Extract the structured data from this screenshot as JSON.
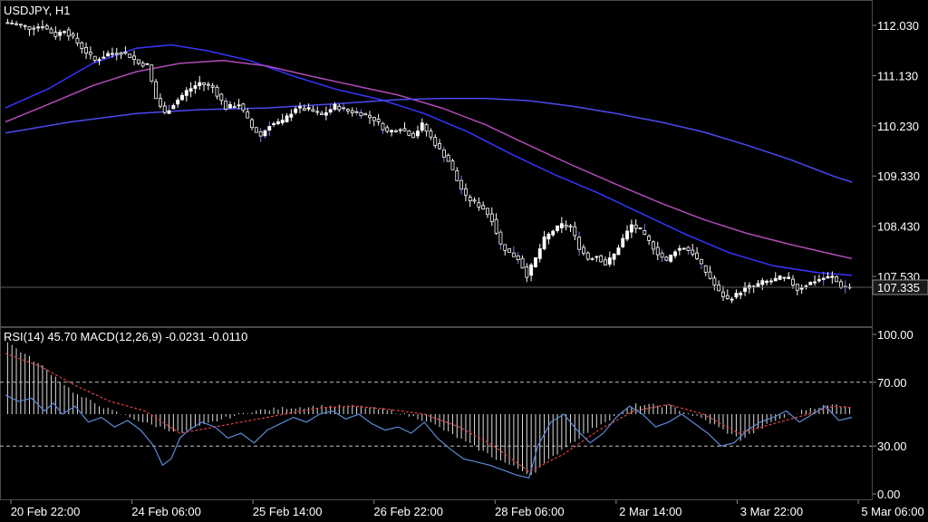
{
  "symbol_title": "USDJPY, H1",
  "indicator_title": "RSI(14) 45.70 MACD(12,26,9) -0.0231 -0.0110",
  "current_price_label": "107.335",
  "colors": {
    "background": "#000000",
    "grid": "#4a4a4a",
    "candle": "#ffffff",
    "candle_down_fill": "#000000",
    "candle_wick_purple": "#9b6cf0",
    "ma_fast": "#3535ff",
    "ma_mid": "#b04ab8",
    "ma_slow": "#4a4af0",
    "rsi_line": "#5b8ad8",
    "macd_signal": "#e04040",
    "macd_hist": "#dcdcdc",
    "price_tag_bg": "#1a1a1a"
  },
  "chart_data": [
    {
      "type": "candlestick",
      "title": "USDJPY, H1",
      "y_ticks": [
        "112.030",
        "111.130",
        "110.230",
        "109.330",
        "108.430",
        "107.530"
      ],
      "ylim": [
        106.95,
        112.25
      ],
      "x_ticks": [
        "20 Feb 22:00",
        "24 Feb 06:00",
        "25 Feb 14:00",
        "26 Feb 22:00",
        "28 Feb 06:00",
        "2 Mar 14:00",
        "3 Mar 22:00",
        "5 Mar 06:00"
      ],
      "current_price": 107.335,
      "close_path": [
        [
          0,
          112.08
        ],
        [
          3,
          112.05
        ],
        [
          6,
          111.98
        ],
        [
          9,
          112.02
        ],
        [
          12,
          111.85
        ],
        [
          14,
          111.95
        ],
        [
          16,
          111.8
        ],
        [
          19,
          111.55
        ],
        [
          21,
          111.4
        ],
        [
          24,
          111.52
        ],
        [
          27,
          111.55
        ],
        [
          29,
          111.48
        ],
        [
          31,
          111.35
        ],
        [
          33,
          111.32
        ],
        [
          35,
          110.72
        ],
        [
          37,
          110.45
        ],
        [
          39,
          110.62
        ],
        [
          42,
          110.85
        ],
        [
          45,
          111.0
        ],
        [
          48,
          110.92
        ],
        [
          51,
          110.55
        ],
        [
          54,
          110.62
        ],
        [
          57,
          110.2
        ],
        [
          59,
          110.05
        ],
        [
          61,
          110.25
        ],
        [
          64,
          110.3
        ],
        [
          67,
          110.55
        ],
        [
          70,
          110.52
        ],
        [
          73,
          110.42
        ],
        [
          76,
          110.58
        ],
        [
          79,
          110.5
        ],
        [
          82,
          110.45
        ],
        [
          85,
          110.35
        ],
        [
          88,
          110.12
        ],
        [
          91,
          110.18
        ],
        [
          94,
          110.05
        ],
        [
          96,
          110.25
        ],
        [
          98,
          110.02
        ],
        [
          100,
          109.8
        ],
        [
          102,
          109.6
        ],
        [
          104,
          109.25
        ],
        [
          106,
          108.95
        ],
        [
          108,
          108.85
        ],
        [
          110,
          108.75
        ],
        [
          112,
          108.55
        ],
        [
          114,
          108.1
        ],
        [
          116,
          107.95
        ],
        [
          118,
          107.85
        ],
        [
          120,
          107.55
        ],
        [
          122,
          107.85
        ],
        [
          124,
          108.2
        ],
        [
          126,
          108.35
        ],
        [
          128,
          108.45
        ],
        [
          130,
          108.42
        ],
        [
          132,
          108.05
        ],
        [
          134,
          107.85
        ],
        [
          136,
          107.9
        ],
        [
          138,
          107.75
        ],
        [
          140,
          107.92
        ],
        [
          142,
          108.2
        ],
        [
          144,
          108.45
        ],
        [
          146,
          108.35
        ],
        [
          148,
          108.15
        ],
        [
          150,
          107.95
        ],
        [
          152,
          107.8
        ],
        [
          154,
          108.0
        ],
        [
          156,
          108.05
        ],
        [
          158,
          107.95
        ],
        [
          160,
          107.72
        ],
        [
          162,
          107.5
        ],
        [
          164,
          107.25
        ],
        [
          166,
          107.12
        ],
        [
          168,
          107.2
        ],
        [
          170,
          107.32
        ],
        [
          172,
          107.35
        ],
        [
          174,
          107.42
        ],
        [
          176,
          107.45
        ],
        [
          178,
          107.5
        ],
        [
          180,
          107.48
        ],
        [
          182,
          107.3
        ],
        [
          184,
          107.38
        ],
        [
          186,
          107.45
        ],
        [
          188,
          107.5
        ],
        [
          190,
          107.52
        ],
        [
          192,
          107.35
        ],
        [
          194,
          107.33
        ]
      ],
      "series": [
        {
          "name": "",
          "color_key": "ma_fast",
          "points": [
            [
              0,
              110.55
            ],
            [
              10,
              110.9
            ],
            [
              20,
              111.35
            ],
            [
              30,
              111.62
            ],
            [
              38,
              111.68
            ],
            [
              46,
              111.58
            ],
            [
              56,
              111.4
            ],
            [
              66,
              111.12
            ],
            [
              76,
              110.88
            ],
            [
              86,
              110.7
            ],
            [
              96,
              110.45
            ],
            [
              106,
              110.12
            ],
            [
              116,
              109.72
            ],
            [
              126,
              109.35
            ],
            [
              136,
              109.02
            ],
            [
              146,
              108.65
            ],
            [
              156,
              108.28
            ],
            [
              166,
              107.95
            ],
            [
              176,
              107.72
            ],
            [
              186,
              107.6
            ],
            [
              194,
              107.55
            ]
          ]
        },
        {
          "name": "",
          "color_key": "ma_mid",
          "points": [
            [
              0,
              110.3
            ],
            [
              10,
              110.62
            ],
            [
              20,
              110.95
            ],
            [
              30,
              111.2
            ],
            [
              40,
              111.35
            ],
            [
              50,
              111.4
            ],
            [
              60,
              111.3
            ],
            [
              70,
              111.12
            ],
            [
              80,
              110.95
            ],
            [
              90,
              110.78
            ],
            [
              100,
              110.55
            ],
            [
              110,
              110.25
            ],
            [
              120,
              109.88
            ],
            [
              130,
              109.52
            ],
            [
              140,
              109.18
            ],
            [
              150,
              108.85
            ],
            [
              160,
              108.55
            ],
            [
              170,
              108.3
            ],
            [
              180,
              108.1
            ],
            [
              190,
              107.92
            ],
            [
              194,
              107.85
            ]
          ]
        },
        {
          "name": "",
          "color_key": "ma_slow",
          "points": [
            [
              0,
              110.1
            ],
            [
              15,
              110.3
            ],
            [
              30,
              110.45
            ],
            [
              45,
              110.52
            ],
            [
              60,
              110.55
            ],
            [
              75,
              110.62
            ],
            [
              90,
              110.7
            ],
            [
              100,
              110.72
            ],
            [
              110,
              110.72
            ],
            [
              120,
              110.68
            ],
            [
              130,
              110.58
            ],
            [
              140,
              110.45
            ],
            [
              150,
              110.3
            ],
            [
              160,
              110.12
            ],
            [
              170,
              109.88
            ],
            [
              180,
              109.62
            ],
            [
              190,
              109.32
            ],
            [
              194,
              109.22
            ]
          ]
        }
      ]
    },
    {
      "type": "line",
      "title": "RSI(14) 45.70 MACD(12,26,9) -0.0231 -0.0110",
      "y_ticks": [
        "100.00",
        "70.00",
        "30.00",
        "0.00"
      ],
      "ylim": [
        0,
        100
      ],
      "dashed_levels": [
        70,
        30
      ],
      "rsi_path": [
        [
          0,
          62
        ],
        [
          3,
          58
        ],
        [
          6,
          60
        ],
        [
          9,
          52
        ],
        [
          11,
          57
        ],
        [
          13,
          50
        ],
        [
          16,
          55
        ],
        [
          19,
          45
        ],
        [
          22,
          48
        ],
        [
          25,
          42
        ],
        [
          28,
          46
        ],
        [
          31,
          40
        ],
        [
          34,
          30
        ],
        [
          36,
          18
        ],
        [
          38,
          22
        ],
        [
          40,
          35
        ],
        [
          42,
          40
        ],
        [
          45,
          45
        ],
        [
          48,
          42
        ],
        [
          51,
          35
        ],
        [
          54,
          38
        ],
        [
          57,
          32
        ],
        [
          60,
          40
        ],
        [
          63,
          44
        ],
        [
          66,
          48
        ],
        [
          69,
          45
        ],
        [
          72,
          50
        ],
        [
          75,
          52
        ],
        [
          78,
          47
        ],
        [
          81,
          50
        ],
        [
          84,
          44
        ],
        [
          87,
          40
        ],
        [
          90,
          42
        ],
        [
          93,
          38
        ],
        [
          96,
          45
        ],
        [
          99,
          35
        ],
        [
          102,
          28
        ],
        [
          105,
          22
        ],
        [
          108,
          20
        ],
        [
          111,
          18
        ],
        [
          114,
          15
        ],
        [
          117,
          12
        ],
        [
          120,
          10
        ],
        [
          122,
          30
        ],
        [
          125,
          45
        ],
        [
          128,
          50
        ],
        [
          131,
          40
        ],
        [
          134,
          32
        ],
        [
          137,
          38
        ],
        [
          140,
          48
        ],
        [
          143,
          55
        ],
        [
          146,
          50
        ],
        [
          149,
          42
        ],
        [
          152,
          45
        ],
        [
          155,
          50
        ],
        [
          158,
          44
        ],
        [
          161,
          38
        ],
        [
          164,
          30
        ],
        [
          167,
          32
        ],
        [
          170,
          40
        ],
        [
          173,
          45
        ],
        [
          176,
          48
        ],
        [
          179,
          52
        ],
        [
          182,
          45
        ],
        [
          185,
          50
        ],
        [
          188,
          55
        ],
        [
          191,
          46
        ],
        [
          194,
          48
        ]
      ],
      "macd_signal_path": [
        [
          0,
          88
        ],
        [
          8,
          80
        ],
        [
          16,
          68
        ],
        [
          24,
          58
        ],
        [
          32,
          52
        ],
        [
          40,
          38
        ],
        [
          48,
          42
        ],
        [
          56,
          46
        ],
        [
          64,
          50
        ],
        [
          72,
          54
        ],
        [
          80,
          55
        ],
        [
          88,
          53
        ],
        [
          96,
          50
        ],
        [
          104,
          42
        ],
        [
          112,
          30
        ],
        [
          120,
          14
        ],
        [
          128,
          25
        ],
        [
          136,
          40
        ],
        [
          144,
          52
        ],
        [
          152,
          56
        ],
        [
          160,
          50
        ],
        [
          168,
          38
        ],
        [
          176,
          44
        ],
        [
          184,
          50
        ],
        [
          190,
          55
        ],
        [
          194,
          54
        ]
      ],
      "macd_hist_path": [
        [
          0,
          95
        ],
        [
          8,
          80
        ],
        [
          16,
          62
        ],
        [
          24,
          52
        ],
        [
          32,
          44
        ],
        [
          40,
          38
        ],
        [
          48,
          46
        ],
        [
          56,
          52
        ],
        [
          64,
          54
        ],
        [
          72,
          55
        ],
        [
          80,
          55
        ],
        [
          88,
          52
        ],
        [
          96,
          46
        ],
        [
          104,
          34
        ],
        [
          112,
          22
        ],
        [
          120,
          12
        ],
        [
          128,
          30
        ],
        [
          136,
          44
        ],
        [
          144,
          56
        ],
        [
          152,
          55
        ],
        [
          160,
          46
        ],
        [
          168,
          34
        ],
        [
          176,
          46
        ],
        [
          184,
          54
        ],
        [
          190,
          56
        ],
        [
          194,
          55
        ]
      ]
    }
  ]
}
